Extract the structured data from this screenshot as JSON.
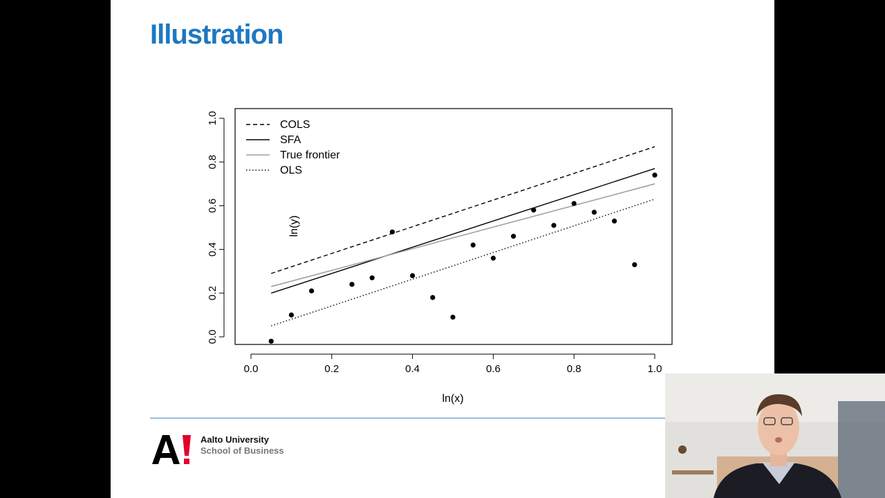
{
  "slide": {
    "title": "Illustration",
    "accent_color": "#1f78c1"
  },
  "footer": {
    "org_name": "Aalto University",
    "school": "School of Business",
    "logo_text": "A!",
    "logo_color": "#e4002b",
    "rule_color": "#4a86b8"
  },
  "webcam": {
    "description_icon": "presenter-video-icon"
  },
  "chart_data": {
    "type": "scatter",
    "xlabel": "ln(x)",
    "ylabel": "ln(y)",
    "xlim": [
      0.0,
      1.0
    ],
    "ylim": [
      0.0,
      1.0
    ],
    "x_ticks": [
      "0.0",
      "0.2",
      "0.4",
      "0.6",
      "0.8",
      "1.0"
    ],
    "y_ticks": [
      "0.0",
      "0.2",
      "0.4",
      "0.6",
      "0.8",
      "1.0"
    ],
    "grid": false,
    "legend_position": "top-left",
    "points": [
      [
        0.05,
        -0.02
      ],
      [
        0.1,
        0.1
      ],
      [
        0.15,
        0.21
      ],
      [
        0.25,
        0.24
      ],
      [
        0.3,
        0.27
      ],
      [
        0.35,
        0.48
      ],
      [
        0.4,
        0.28
      ],
      [
        0.45,
        0.18
      ],
      [
        0.5,
        0.09
      ],
      [
        0.55,
        0.42
      ],
      [
        0.6,
        0.36
      ],
      [
        0.65,
        0.46
      ],
      [
        0.7,
        0.58
      ],
      [
        0.75,
        0.51
      ],
      [
        0.8,
        0.61
      ],
      [
        0.85,
        0.57
      ],
      [
        0.9,
        0.53
      ],
      [
        0.95,
        0.33
      ],
      [
        1.0,
        0.74
      ]
    ],
    "series": [
      {
        "name": "COLS",
        "style": "dashed",
        "color": "#000000",
        "x": [
          0.05,
          1.0
        ],
        "y": [
          0.29,
          0.87
        ]
      },
      {
        "name": "SFA",
        "style": "solid",
        "color": "#000000",
        "x": [
          0.05,
          1.0
        ],
        "y": [
          0.2,
          0.77
        ]
      },
      {
        "name": "True frontier",
        "style": "solid",
        "color": "#a0a0a0",
        "x": [
          0.05,
          1.0
        ],
        "y": [
          0.23,
          0.7
        ]
      },
      {
        "name": "OLS",
        "style": "dotted",
        "color": "#000000",
        "x": [
          0.05,
          1.0
        ],
        "y": [
          0.05,
          0.63
        ]
      }
    ]
  }
}
